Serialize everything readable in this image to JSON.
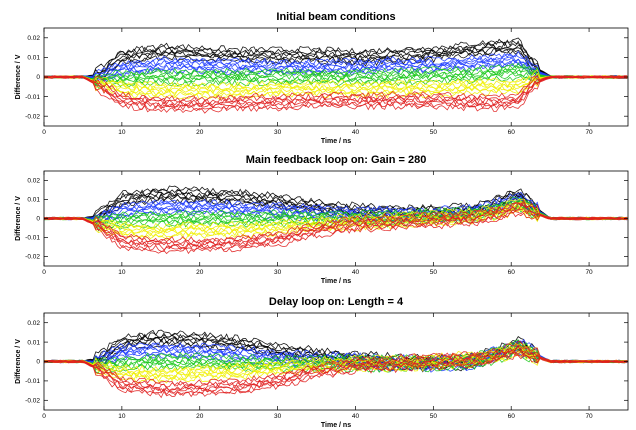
{
  "chart_data": [
    {
      "type": "line",
      "title": "Initial beam conditions",
      "xlabel": "Time / ns",
      "ylabel": "Difference / V",
      "xlim": [
        0,
        75
      ],
      "ylim": [
        -0.025,
        0.025
      ],
      "xticks": [
        0,
        10,
        20,
        30,
        40,
        50,
        60,
        70
      ],
      "yticks": [
        0.02,
        0.01,
        0,
        -0.01,
        -0.02
      ],
      "grid": false,
      "x": [
        0,
        5,
        7,
        10,
        15,
        20,
        25,
        30,
        35,
        40,
        45,
        50,
        55,
        58,
        61,
        63,
        65,
        70,
        75
      ],
      "series": [
        {
          "color": "#000000",
          "values": [
            0,
            0,
            0.001,
            0.01,
            0.013,
            0.012,
            0.011,
            0.011,
            0.011,
            0.01,
            0.011,
            0.012,
            0.014,
            0.015,
            0.016,
            0.005,
            0,
            0,
            0
          ]
        },
        {
          "color": "#1e3cff",
          "values": [
            0,
            0,
            0.0,
            0.004,
            0.006,
            0.006,
            0.005,
            0.005,
            0.005,
            0.005,
            0.006,
            0.006,
            0.007,
            0.008,
            0.009,
            0.003,
            0,
            0,
            0
          ]
        },
        {
          "color": "#18c818",
          "values": [
            0,
            0,
            -0.002,
            -0.001,
            0.0,
            0.0,
            0.0,
            0.0,
            0.0,
            0.0,
            0.0,
            0.001,
            0.001,
            0.002,
            0.003,
            0.001,
            0,
            0,
            0
          ]
        },
        {
          "color": "#f0f000",
          "values": [
            0,
            0,
            -0.003,
            -0.006,
            -0.007,
            -0.007,
            -0.007,
            -0.006,
            -0.006,
            -0.006,
            -0.006,
            -0.006,
            -0.005,
            -0.005,
            -0.005,
            -0.001,
            0,
            0,
            0
          ]
        },
        {
          "color": "#e01e1e",
          "values": [
            0,
            0,
            -0.004,
            -0.012,
            -0.014,
            -0.014,
            -0.013,
            -0.013,
            -0.012,
            -0.012,
            -0.012,
            -0.012,
            -0.013,
            -0.013,
            -0.012,
            -0.003,
            0,
            0,
            0
          ]
        }
      ]
    },
    {
      "type": "line",
      "title": "Main feedback loop on: Gain = 280",
      "xlabel": "Time / ns",
      "ylabel": "Difference / V",
      "xlim": [
        0,
        75
      ],
      "ylim": [
        -0.025,
        0.025
      ],
      "xticks": [
        0,
        10,
        20,
        30,
        40,
        50,
        60,
        70
      ],
      "yticks": [
        0.02,
        0.01,
        0,
        -0.01,
        -0.02
      ],
      "grid": false,
      "x": [
        0,
        5,
        7,
        10,
        15,
        20,
        25,
        30,
        35,
        40,
        45,
        50,
        55,
        58,
        61,
        63,
        65,
        70,
        75
      ],
      "series": [
        {
          "color": "#000000",
          "values": [
            0,
            0,
            0.001,
            0.01,
            0.013,
            0.012,
            0.011,
            0.009,
            0.006,
            0.004,
            0.003,
            0.003,
            0.004,
            0.008,
            0.013,
            0.006,
            0,
            0,
            0
          ]
        },
        {
          "color": "#1e3cff",
          "values": [
            0,
            0,
            0.0,
            0.004,
            0.006,
            0.006,
            0.005,
            0.004,
            0.003,
            0.002,
            0.002,
            0.002,
            0.003,
            0.006,
            0.01,
            0.005,
            0,
            0,
            0
          ]
        },
        {
          "color": "#18c818",
          "values": [
            0,
            0,
            -0.002,
            -0.001,
            0.0,
            0.0,
            0.0,
            0.0,
            0.0,
            0.0,
            0.0,
            0.001,
            0.002,
            0.004,
            0.008,
            0.004,
            0,
            0,
            0
          ]
        },
        {
          "color": "#f0f000",
          "values": [
            0,
            0,
            -0.003,
            -0.006,
            -0.007,
            -0.006,
            -0.006,
            -0.005,
            -0.003,
            -0.002,
            -0.001,
            0.0,
            0.001,
            0.003,
            0.007,
            0.003,
            0,
            0,
            0
          ]
        },
        {
          "color": "#e01e1e",
          "values": [
            0,
            0,
            -0.004,
            -0.012,
            -0.014,
            -0.014,
            -0.013,
            -0.011,
            -0.006,
            -0.003,
            -0.002,
            -0.001,
            0.0,
            0.002,
            0.006,
            0.003,
            0,
            0,
            0
          ]
        }
      ]
    },
    {
      "type": "line",
      "title": "Delay loop on: Length = 4",
      "xlabel": "Time / ns",
      "ylabel": "Difference / V",
      "xlim": [
        0,
        75
      ],
      "ylim": [
        -0.025,
        0.025
      ],
      "xticks": [
        0,
        10,
        20,
        30,
        40,
        50,
        60,
        70
      ],
      "yticks": [
        0.02,
        0.01,
        0,
        -0.01,
        -0.02
      ],
      "grid": false,
      "x": [
        0,
        5,
        7,
        10,
        15,
        20,
        25,
        30,
        35,
        40,
        45,
        50,
        55,
        58,
        61,
        63,
        65,
        70,
        75
      ],
      "series": [
        {
          "color": "#000000",
          "values": [
            0,
            0,
            0.001,
            0.01,
            0.012,
            0.011,
            0.009,
            0.006,
            0.003,
            0.001,
            0.0,
            -0.001,
            0.0,
            0.004,
            0.009,
            0.004,
            0,
            0,
            0
          ]
        },
        {
          "color": "#1e3cff",
          "values": [
            0,
            0,
            0.0,
            0.005,
            0.006,
            0.005,
            0.004,
            0.002,
            0.001,
            0.0,
            -0.001,
            -0.001,
            0.0,
            0.004,
            0.008,
            0.004,
            0,
            0,
            0
          ]
        },
        {
          "color": "#18c818",
          "values": [
            0,
            0,
            -0.002,
            -0.001,
            0.0,
            0.0,
            -0.001,
            -0.001,
            -0.001,
            -0.001,
            -0.001,
            -0.001,
            0.0,
            0.003,
            0.007,
            0.003,
            0,
            0,
            0
          ]
        },
        {
          "color": "#f0f000",
          "values": [
            0,
            0,
            -0.003,
            -0.006,
            -0.007,
            -0.006,
            -0.005,
            -0.003,
            -0.002,
            -0.001,
            -0.001,
            0.0,
            0.001,
            0.003,
            0.007,
            0.003,
            0,
            0,
            0
          ]
        },
        {
          "color": "#e01e1e",
          "values": [
            0,
            0,
            -0.004,
            -0.012,
            -0.014,
            -0.014,
            -0.013,
            -0.01,
            -0.005,
            -0.002,
            -0.001,
            0.0,
            0.001,
            0.003,
            0.006,
            0.003,
            0,
            0,
            0
          ]
        }
      ]
    }
  ]
}
